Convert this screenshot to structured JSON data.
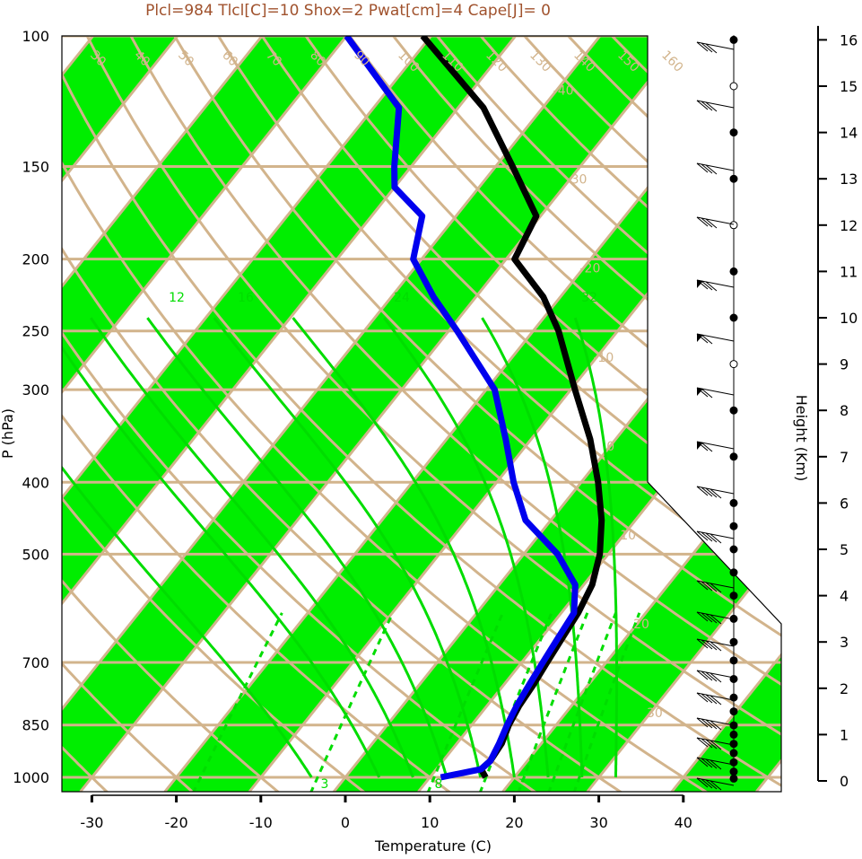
{
  "chart_data": {
    "type": "skew-t",
    "title": "Plcl=984 Tlcl[C]=10 Shox=2 Pwat[cm]=4 Cape[J]= 0",
    "xlabel": "Temperature (C)",
    "ylabel": "P (hPa)",
    "y2label": "Height (Km)",
    "x_ticks": [
      -30,
      -20,
      -10,
      0,
      10,
      20,
      30,
      40
    ],
    "p_ticks": [
      100,
      150,
      200,
      250,
      300,
      400,
      500,
      700,
      850,
      1000
    ],
    "height_ticks": [
      0,
      1,
      2,
      3,
      4,
      5,
      6,
      7,
      8,
      9,
      10,
      11,
      12,
      13,
      14,
      15,
      16
    ],
    "isotherm_labels": [
      -40,
      -30,
      -20,
      -10,
      0,
      10,
      20,
      30
    ],
    "dry_adiabat_labels": [
      -30,
      -20,
      -10,
      0,
      10,
      20,
      30,
      40,
      50,
      60,
      70,
      80,
      90,
      100,
      110,
      120,
      130,
      140,
      150,
      160
    ],
    "mixing_ratio_labels": [
      3,
      8,
      12,
      16,
      24,
      32
    ],
    "temperature": [
      {
        "p": 1000,
        "t": 16.6
      },
      {
        "p": 975,
        "t": 15.3
      },
      {
        "p": 950,
        "t": 15.6
      },
      {
        "p": 900,
        "t": 15.3
      },
      {
        "p": 850,
        "t": 14.4
      },
      {
        "p": 800,
        "t": 13.8
      },
      {
        "p": 750,
        "t": 13.5
      },
      {
        "p": 700,
        "t": 13.0
      },
      {
        "p": 650,
        "t": 12.5
      },
      {
        "p": 600,
        "t": 12.0
      },
      {
        "p": 550,
        "t": 11.0
      },
      {
        "p": 500,
        "t": 9.0
      },
      {
        "p": 450,
        "t": 6.0
      },
      {
        "p": 400,
        "t": 2.0
      },
      {
        "p": 350,
        "t": -3.0
      },
      {
        "p": 300,
        "t": -9.5
      },
      {
        "p": 250,
        "t": -17.0
      },
      {
        "p": 225,
        "t": -22.0
      },
      {
        "p": 200,
        "t": -29.0
      },
      {
        "p": 175,
        "t": -30.5
      },
      {
        "p": 150,
        "t": -38.0
      },
      {
        "p": 125,
        "t": -47.0
      },
      {
        "p": 100,
        "t": -61.0
      }
    ],
    "dewpoint": [
      {
        "p": 1000,
        "t": 11.3
      },
      {
        "p": 975,
        "t": 15.3
      },
      {
        "p": 950,
        "t": 15.6
      },
      {
        "p": 900,
        "t": 15.0
      },
      {
        "p": 850,
        "t": 14.2
      },
      {
        "p": 800,
        "t": 13.5
      },
      {
        "p": 750,
        "t": 13.0
      },
      {
        "p": 700,
        "t": 12.5
      },
      {
        "p": 650,
        "t": 12.0
      },
      {
        "p": 600,
        "t": 11.5
      },
      {
        "p": 550,
        "t": 9.0
      },
      {
        "p": 500,
        "t": 4.0
      },
      {
        "p": 450,
        "t": -3.0
      },
      {
        "p": 400,
        "t": -8.0
      },
      {
        "p": 350,
        "t": -13.0
      },
      {
        "p": 300,
        "t": -19.0
      },
      {
        "p": 250,
        "t": -29.0
      },
      {
        "p": 225,
        "t": -35.0
      },
      {
        "p": 200,
        "t": -41.0
      },
      {
        "p": 175,
        "t": -44.0
      },
      {
        "p": 160,
        "t": -50.0
      },
      {
        "p": 150,
        "t": -52.0
      },
      {
        "p": 125,
        "t": -57.0
      },
      {
        "p": 100,
        "t": -70.0
      }
    ],
    "wind_profile_heights_km": [
      0.05,
      0.2,
      0.4,
      0.6,
      0.8,
      1.0,
      1.2,
      1.5,
      1.8,
      2.2,
      2.6,
      3.0,
      3.5,
      4.0,
      4.5,
      5.0,
      5.5,
      6.0,
      7.0,
      8.0,
      9.0,
      10.0,
      11.0,
      12.0,
      13.0,
      14.0,
      15.0,
      16.0
    ],
    "colors": {
      "temperature": "#000000",
      "dewpoint": "#0000ee",
      "isotherm_band": "#00ee00",
      "grid": "#d2b48c",
      "moist_adiabat": "#00dd00",
      "title": "#a0522d"
    }
  }
}
